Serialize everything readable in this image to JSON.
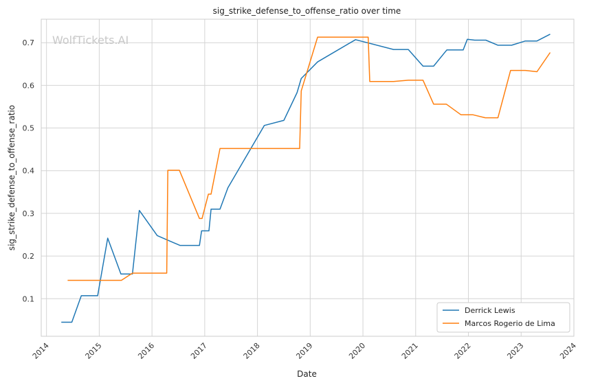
{
  "watermark": "WolfTickets.AI",
  "chart_data": {
    "type": "line",
    "title": "sig_strike_defense_to_offense_ratio over time",
    "xlabel": "Date",
    "ylabel": "sig_strike_defense_to_offense_ratio",
    "xlim": [
      2013.9,
      2024.0
    ],
    "ylim": [
      0.012,
      0.755
    ],
    "x_ticks": [
      2014,
      2015,
      2016,
      2017,
      2018,
      2019,
      2020,
      2021,
      2022,
      2023,
      2024
    ],
    "x_tick_labels": [
      "2014",
      "2015",
      "2016",
      "2017",
      "2018",
      "2019",
      "2020",
      "2021",
      "2022",
      "2023",
      "2024"
    ],
    "y_ticks": [
      0.1,
      0.2,
      0.3,
      0.4,
      0.5,
      0.6,
      0.7
    ],
    "y_tick_labels": [
      "0.1",
      "0.2",
      "0.3",
      "0.4",
      "0.5",
      "0.6",
      "0.7"
    ],
    "grid": true,
    "legend_position": "lower-right",
    "series": [
      {
        "name": "Derrick Lewis",
        "color": "#1f77b4",
        "x": [
          2014.28,
          2014.48,
          2014.66,
          2014.97,
          2015.16,
          2015.41,
          2015.63,
          2015.76,
          2016.1,
          2016.53,
          2016.9,
          2016.94,
          2017.08,
          2017.12,
          2017.29,
          2017.44,
          2018.13,
          2018.5,
          2018.75,
          2018.83,
          2019.14,
          2019.86,
          2020.58,
          2020.86,
          2021.14,
          2021.34,
          2021.59,
          2021.9,
          2021.98,
          2022.12,
          2022.33,
          2022.56,
          2022.82,
          2023.08,
          2023.3,
          2023.55
        ],
        "y": [
          0.045,
          0.045,
          0.107,
          0.107,
          0.242,
          0.158,
          0.158,
          0.307,
          0.248,
          0.225,
          0.225,
          0.259,
          0.259,
          0.31,
          0.31,
          0.36,
          0.506,
          0.518,
          0.583,
          0.616,
          0.655,
          0.707,
          0.684,
          0.684,
          0.645,
          0.645,
          0.683,
          0.683,
          0.708,
          0.706,
          0.706,
          0.694,
          0.694,
          0.704,
          0.704,
          0.72
        ]
      },
      {
        "name": "Marcos Rogerio de Lima",
        "color": "#ff7f0e",
        "x": [
          2014.4,
          2015.42,
          2015.63,
          2016.28,
          2016.3,
          2016.52,
          2016.9,
          2016.95,
          2017.07,
          2017.12,
          2017.29,
          2018.8,
          2018.83,
          2019.14,
          2020.1,
          2020.13,
          2020.58,
          2020.86,
          2021.14,
          2021.34,
          2021.58,
          2021.86,
          2022.09,
          2022.32,
          2022.56,
          2022.8,
          2023.08,
          2023.3,
          2023.55
        ],
        "y": [
          0.143,
          0.143,
          0.16,
          0.16,
          0.401,
          0.401,
          0.288,
          0.288,
          0.345,
          0.345,
          0.452,
          0.452,
          0.587,
          0.713,
          0.713,
          0.609,
          0.609,
          0.612,
          0.612,
          0.556,
          0.556,
          0.531,
          0.531,
          0.524,
          0.524,
          0.635,
          0.635,
          0.632,
          0.677
        ]
      }
    ]
  }
}
